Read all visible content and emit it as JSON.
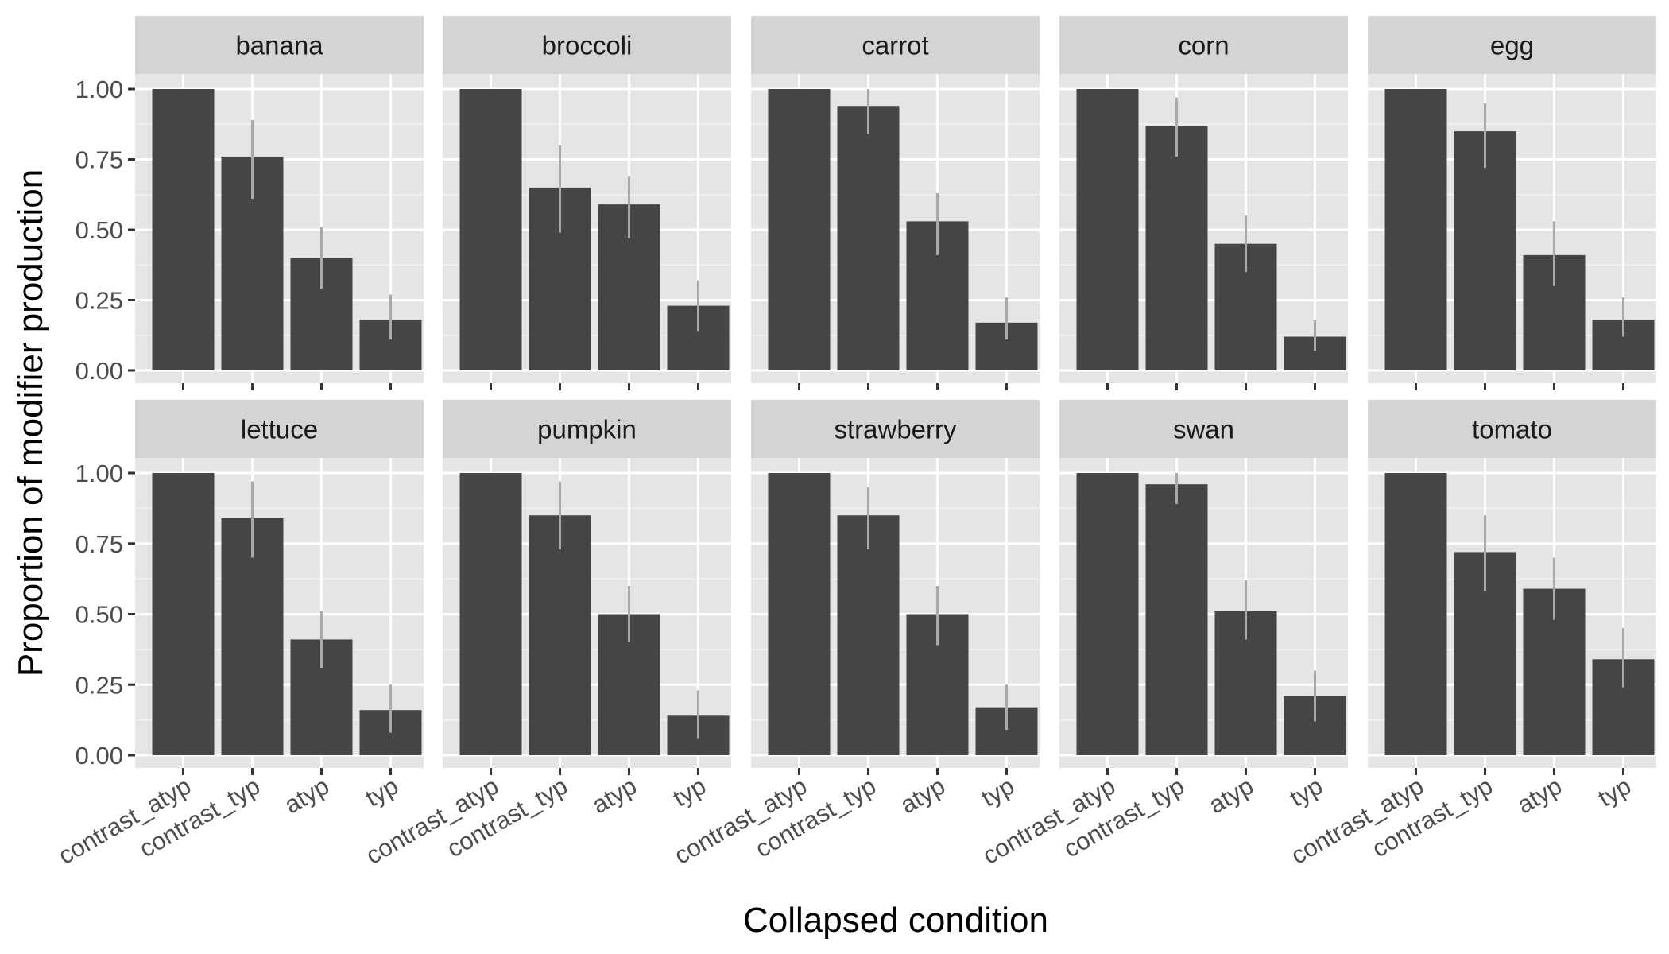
{
  "chart_data": {
    "type": "bar",
    "xlabel": "Collapsed condition",
    "ylabel": "Proportion of modifier production",
    "categories": [
      "contrast_atyp",
      "contrast_typ",
      "atyp",
      "typ"
    ],
    "ylim": [
      0,
      1.2
    ],
    "yticks": [
      0,
      0.25,
      0.5,
      0.75,
      1.0
    ],
    "ytick_labels": [
      "0.00",
      "0.25",
      "0.50",
      "0.75",
      "1.00"
    ],
    "grid": true,
    "bar_color": "#454545",
    "error_color": "#a9a9a9",
    "panel_background": "#e5e5e5",
    "strip_background": "#d4d4d4",
    "facets": [
      {
        "label": "banana",
        "values": [
          1.0,
          0.76,
          0.4,
          0.18
        ],
        "error": [
          [
            1.0,
            1.0
          ],
          [
            0.61,
            0.89
          ],
          [
            0.29,
            0.51
          ],
          [
            0.11,
            0.27
          ]
        ]
      },
      {
        "label": "broccoli",
        "values": [
          1.0,
          0.65,
          0.59,
          0.23
        ],
        "error": [
          [
            1.0,
            1.0
          ],
          [
            0.49,
            0.8
          ],
          [
            0.47,
            0.69
          ],
          [
            0.14,
            0.32
          ]
        ]
      },
      {
        "label": "carrot",
        "values": [
          1.0,
          0.94,
          0.53,
          0.17
        ],
        "error": [
          [
            1.0,
            1.0
          ],
          [
            0.84,
            1.0
          ],
          [
            0.41,
            0.63
          ],
          [
            0.11,
            0.26
          ]
        ]
      },
      {
        "label": "corn",
        "values": [
          1.0,
          0.87,
          0.45,
          0.12
        ],
        "error": [
          [
            1.0,
            1.0
          ],
          [
            0.76,
            0.97
          ],
          [
            0.35,
            0.55
          ],
          [
            0.07,
            0.18
          ]
        ]
      },
      {
        "label": "egg",
        "values": [
          1.0,
          0.85,
          0.41,
          0.18
        ],
        "error": [
          [
            1.0,
            1.0
          ],
          [
            0.72,
            0.95
          ],
          [
            0.3,
            0.53
          ],
          [
            0.12,
            0.26
          ]
        ]
      },
      {
        "label": "lettuce",
        "values": [
          1.0,
          0.84,
          0.41,
          0.16
        ],
        "error": [
          [
            1.0,
            1.0
          ],
          [
            0.7,
            0.97
          ],
          [
            0.31,
            0.51
          ],
          [
            0.08,
            0.25
          ]
        ]
      },
      {
        "label": "pumpkin",
        "values": [
          1.0,
          0.85,
          0.5,
          0.14
        ],
        "error": [
          [
            1.0,
            1.0
          ],
          [
            0.73,
            0.97
          ],
          [
            0.4,
            0.6
          ],
          [
            0.06,
            0.23
          ]
        ]
      },
      {
        "label": "strawberry",
        "values": [
          1.0,
          0.85,
          0.5,
          0.17
        ],
        "error": [
          [
            1.0,
            1.0
          ],
          [
            0.73,
            0.95
          ],
          [
            0.39,
            0.6
          ],
          [
            0.09,
            0.25
          ]
        ]
      },
      {
        "label": "swan",
        "values": [
          1.0,
          0.96,
          0.51,
          0.21
        ],
        "error": [
          [
            1.0,
            1.0
          ],
          [
            0.89,
            1.0
          ],
          [
            0.41,
            0.62
          ],
          [
            0.12,
            0.3
          ]
        ]
      },
      {
        "label": "tomato",
        "values": [
          1.0,
          0.72,
          0.59,
          0.34
        ],
        "error": [
          [
            1.0,
            1.0
          ],
          [
            0.58,
            0.85
          ],
          [
            0.48,
            0.7
          ],
          [
            0.24,
            0.45
          ]
        ]
      }
    ]
  }
}
